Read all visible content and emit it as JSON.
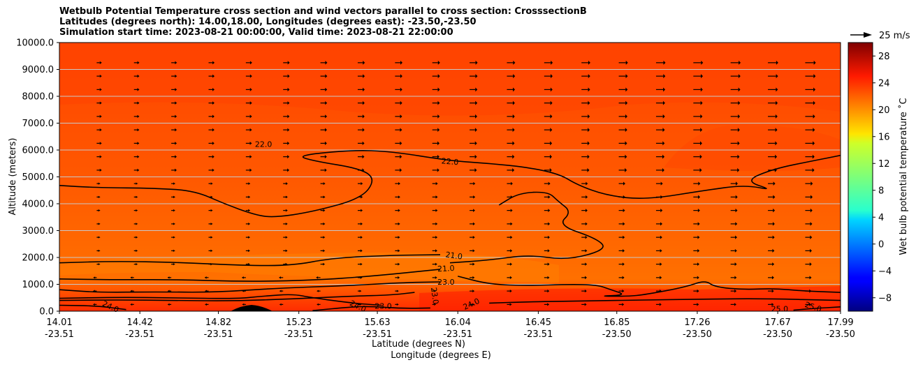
{
  "chart_data": {
    "type": "contour",
    "title_lines": [
      "Wetbulb Potential Temperature cross section and wind vectors parallel to cross section: CrosssectionB",
      "Latitudes (degrees north): 14.00,18.00, Longitudes (degrees east): -23.50,-23.50",
      "Simulation start time: 2023-08-21 00:00:00, Valid time: 2023-08-21 22:00:00"
    ],
    "ylabel": "Altitude (meters)",
    "xlabel_lat": "Latitude (degrees N)",
    "xlabel_lon": "Longitude (degrees E)",
    "ylim": [
      0,
      10000
    ],
    "yticks": [
      {
        "v": 0,
        "label": "0.0"
      },
      {
        "v": 1000,
        "label": "1000.0"
      },
      {
        "v": 2000,
        "label": "2000.0"
      },
      {
        "v": 3000,
        "label": "3000.0"
      },
      {
        "v": 4000,
        "label": "4000.0"
      },
      {
        "v": 5000,
        "label": "5000.0"
      },
      {
        "v": 6000,
        "label": "6000.0"
      },
      {
        "v": 7000,
        "label": "7000.0"
      },
      {
        "v": 8000,
        "label": "8000.0"
      },
      {
        "v": 9000,
        "label": "9000.0"
      },
      {
        "v": 10000,
        "label": "10000.0"
      }
    ],
    "xlim": [
      14.01,
      17.99
    ],
    "xticks": [
      {
        "lat": 14.01,
        "lat_label": "14.01",
        "lon_label": "-23.51"
      },
      {
        "lat": 14.42,
        "lat_label": "14.42",
        "lon_label": "-23.51"
      },
      {
        "lat": 14.82,
        "lat_label": "14.82",
        "lon_label": "-23.51"
      },
      {
        "lat": 15.23,
        "lat_label": "15.23",
        "lon_label": "-23.51"
      },
      {
        "lat": 15.63,
        "lat_label": "15.63",
        "lon_label": "-23.51"
      },
      {
        "lat": 16.04,
        "lat_label": "16.04",
        "lon_label": "-23.51"
      },
      {
        "lat": 16.45,
        "lat_label": "16.45",
        "lon_label": "-23.51"
      },
      {
        "lat": 16.85,
        "lat_label": "16.85",
        "lon_label": "-23.50"
      },
      {
        "lat": 17.26,
        "lat_label": "17.26",
        "lon_label": "-23.50"
      },
      {
        "lat": 17.67,
        "lat_label": "17.67",
        "lon_label": "-23.50"
      },
      {
        "lat": 17.99,
        "lat_label": "17.99",
        "lon_label": "-23.50"
      }
    ],
    "colorbar": {
      "label": "Wet bulb potential temperature $^\\circ$C",
      "label_display": "Wet bulb potential temperature ˚C",
      "range": [
        -10,
        30
      ],
      "ticks": [
        {
          "v": -8,
          "label": "−8"
        },
        {
          "v": -4,
          "label": "−4"
        },
        {
          "v": 0,
          "label": "0"
        },
        {
          "v": 4,
          "label": "4"
        },
        {
          "v": 8,
          "label": "8"
        },
        {
          "v": 12,
          "label": "12"
        },
        {
          "v": 16,
          "label": "16"
        },
        {
          "v": 20,
          "label": "20"
        },
        {
          "v": 24,
          "label": "24"
        },
        {
          "v": 28,
          "label": "28"
        }
      ],
      "colormap": "jet"
    },
    "quiver_key": {
      "label": "25 m/s",
      "speed": 25
    },
    "contour_labels": [
      {
        "text": "22.0",
        "lat": 15.05,
        "alt": 6200,
        "rot": 0
      },
      {
        "text": "22.0",
        "lat": 16.0,
        "alt": 5550,
        "rot": 5
      },
      {
        "text": "21.0",
        "lat": 16.02,
        "alt": 2050,
        "rot": 8
      },
      {
        "text": "21.0",
        "lat": 15.98,
        "alt": 1570,
        "rot": -3
      },
      {
        "text": "23.0",
        "lat": 15.98,
        "alt": 1060,
        "rot": 0
      },
      {
        "text": "23.0",
        "lat": 15.92,
        "alt": 570,
        "rot": 82
      },
      {
        "text": "24.0",
        "lat": 14.27,
        "alt": 150,
        "rot": 25
      },
      {
        "text": "24.0",
        "lat": 15.53,
        "alt": 170,
        "rot": 25
      },
      {
        "text": "23.0",
        "lat": 15.66,
        "alt": 170,
        "rot": 0
      },
      {
        "text": "24.0",
        "lat": 16.11,
        "alt": 250,
        "rot": -25
      },
      {
        "text": "25.0",
        "lat": 17.68,
        "alt": 60,
        "rot": 0
      },
      {
        "text": "25.0",
        "lat": 17.85,
        "alt": 140,
        "rot": 18
      }
    ],
    "contour_lines": [
      {
        "level": 22.0,
        "points": [
          [
            14.01,
            4680
          ],
          [
            14.2,
            4600
          ],
          [
            14.5,
            4580
          ],
          [
            14.7,
            4480
          ],
          [
            14.85,
            4000
          ],
          [
            15.0,
            3600
          ],
          [
            15.1,
            3480
          ],
          [
            15.3,
            3700
          ],
          [
            15.55,
            4200
          ],
          [
            15.62,
            4900
          ],
          [
            15.55,
            5300
          ],
          [
            15.3,
            5600
          ],
          [
            15.22,
            5800
          ],
          [
            15.5,
            6000
          ],
          [
            15.7,
            5950
          ],
          [
            16.0,
            5600
          ],
          [
            16.2,
            5500
          ],
          [
            16.4,
            5350
          ],
          [
            16.56,
            5100
          ],
          [
            16.65,
            4700
          ],
          [
            16.8,
            4300
          ],
          [
            17.0,
            4150
          ],
          [
            17.3,
            4500
          ],
          [
            17.5,
            4700
          ],
          [
            17.65,
            4500
          ],
          [
            17.5,
            4850
          ],
          [
            17.65,
            5300
          ],
          [
            17.85,
            5600
          ],
          [
            17.99,
            5800
          ]
        ]
      },
      {
        "level": 22.0,
        "points": [
          [
            16.25,
            3950
          ],
          [
            16.35,
            4400
          ],
          [
            16.5,
            4450
          ],
          [
            16.55,
            4100
          ],
          [
            16.62,
            3700
          ],
          [
            16.55,
            3200
          ],
          [
            16.75,
            2700
          ],
          [
            16.8,
            2300
          ],
          [
            16.6,
            1900
          ],
          [
            16.4,
            2100
          ],
          [
            16.2,
            1900
          ],
          [
            16.0,
            1800
          ]
        ]
      },
      {
        "level": 21.0,
        "points": [
          [
            14.01,
            1800
          ],
          [
            14.3,
            1860
          ],
          [
            14.6,
            1820
          ],
          [
            14.95,
            1700
          ],
          [
            15.2,
            1700
          ],
          [
            15.4,
            1980
          ],
          [
            15.7,
            2080
          ],
          [
            15.95,
            2100
          ]
        ]
      },
      {
        "level": 21.0,
        "points": [
          [
            14.01,
            1200
          ],
          [
            14.3,
            1170
          ],
          [
            14.6,
            1180
          ],
          [
            14.95,
            1100
          ],
          [
            15.3,
            1150
          ],
          [
            15.6,
            1300
          ],
          [
            15.95,
            1560
          ]
        ]
      },
      {
        "level": 23.0,
        "points": [
          [
            14.01,
            800
          ],
          [
            14.2,
            700
          ],
          [
            14.5,
            720
          ],
          [
            14.8,
            700
          ],
          [
            15.1,
            850
          ],
          [
            15.45,
            940
          ],
          [
            15.75,
            1060
          ],
          [
            15.95,
            1090
          ]
        ]
      },
      {
        "level": 23.0,
        "points": [
          [
            14.01,
            480
          ],
          [
            14.3,
            520
          ],
          [
            14.6,
            500
          ],
          [
            14.9,
            460
          ],
          [
            15.05,
            560
          ],
          [
            15.2,
            640
          ],
          [
            15.3,
            500
          ],
          [
            15.5,
            300
          ],
          [
            15.65,
            220
          ]
        ]
      },
      {
        "level": 23.0,
        "points": [
          [
            14.01,
            400
          ],
          [
            14.3,
            420
          ],
          [
            14.6,
            400
          ],
          [
            14.9,
            380
          ],
          [
            15.2,
            460
          ],
          [
            15.5,
            560
          ],
          [
            15.7,
            600
          ],
          [
            15.82,
            700
          ]
        ]
      },
      {
        "level": 23.0,
        "points": [
          [
            16.04,
            1300
          ],
          [
            16.2,
            1000
          ],
          [
            16.4,
            950
          ],
          [
            16.6,
            1000
          ],
          [
            16.75,
            980
          ],
          [
            16.82,
            800
          ],
          [
            16.9,
            600
          ],
          [
            16.75,
            560
          ],
          [
            16.9,
            550
          ],
          [
            17.0,
            620
          ],
          [
            17.2,
            900
          ],
          [
            17.3,
            1150
          ],
          [
            17.35,
            900
          ],
          [
            17.5,
            800
          ],
          [
            17.65,
            850
          ],
          [
            17.8,
            750
          ],
          [
            17.99,
            700
          ]
        ]
      },
      {
        "level": 24.0,
        "points": [
          [
            14.01,
            220
          ],
          [
            14.2,
            200
          ],
          [
            14.35,
            60
          ]
        ]
      },
      {
        "level": 24.0,
        "points": [
          [
            15.3,
            20
          ],
          [
            15.5,
            160
          ],
          [
            15.6,
            180
          ],
          [
            15.75,
            100
          ],
          [
            15.9,
            120
          ]
        ]
      },
      {
        "level": 24.0,
        "points": [
          [
            16.2,
            300
          ],
          [
            16.4,
            350
          ],
          [
            16.7,
            380
          ],
          [
            17.0,
            420
          ],
          [
            17.3,
            450
          ],
          [
            17.6,
            470
          ],
          [
            17.99,
            400
          ]
        ]
      },
      {
        "level": 25.0,
        "points": [
          [
            17.75,
            40
          ],
          [
            17.85,
            100
          ],
          [
            17.99,
            160
          ]
        ]
      }
    ],
    "quiver_grid": {
      "lat_start": 14.2,
      "lat_step": 0.19,
      "count_x": 21,
      "alt_start": 250,
      "alt_step": 500,
      "count_y": 19,
      "description": "wind vectors parallel to cross section, mostly eastward, stronger aloft and toward north"
    }
  }
}
